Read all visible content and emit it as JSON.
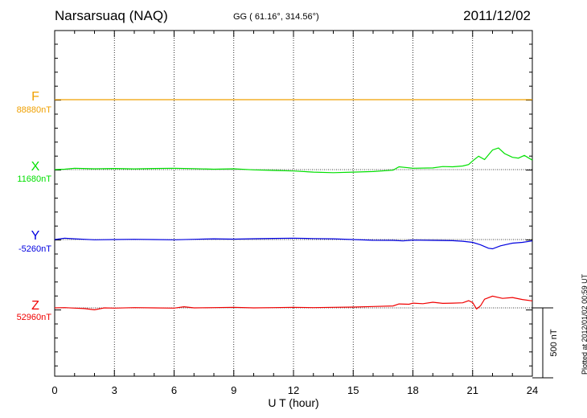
{
  "header": {
    "station": "Narsarsuaq (NAQ)",
    "coords": "GG ( 61.16°, 314.56°)",
    "date": "2011/12/02"
  },
  "footer": {
    "plotted": "Plotted at 2012/01/02 00:59 UT",
    "scale_label": "500 nT"
  },
  "chart_data": {
    "type": "line",
    "xlabel": "U T (hour)",
    "xlim": [
      0,
      24
    ],
    "xticks": [
      "0",
      "3",
      "6",
      "9",
      "12",
      "15",
      "18",
      "21",
      "24"
    ],
    "y_unit_scale_nT": 500,
    "series": [
      {
        "name": "F",
        "baseline_label": "88880nT",
        "color": "#f0a000",
        "baseline": 88880,
        "x": [
          0,
          1,
          2,
          3,
          4,
          5,
          6,
          7,
          8,
          9,
          10,
          11,
          12,
          13,
          14,
          15,
          16,
          17,
          18,
          19,
          20,
          21,
          22,
          23,
          24
        ],
        "y": [
          88880,
          88880,
          88880,
          88880,
          88880,
          88880,
          88880,
          88880,
          88880,
          88880,
          88880,
          88880,
          88880,
          88880,
          88880,
          88880,
          88880,
          88880,
          88880,
          88880,
          88880,
          88880,
          88880,
          88880,
          88880
        ]
      },
      {
        "name": "X",
        "baseline_label": "11680nT",
        "color": "#00e000",
        "baseline": 11680,
        "x": [
          0,
          0.5,
          1,
          2,
          3,
          4,
          5,
          6,
          7,
          8,
          9,
          10,
          11,
          12,
          13,
          14,
          15,
          16,
          17,
          17.3,
          18,
          19,
          19.5,
          20,
          20.5,
          20.8,
          21,
          21.3,
          21.6,
          22,
          22.3,
          22.6,
          23,
          23.3,
          23.6,
          24
        ],
        "y": [
          11680,
          11683,
          11690,
          11686,
          11688,
          11685,
          11688,
          11690,
          11687,
          11683,
          11686,
          11678,
          11674,
          11670,
          11662,
          11658,
          11662,
          11666,
          11676,
          11700,
          11690,
          11692,
          11702,
          11700,
          11706,
          11716,
          11742,
          11776,
          11752,
          11820,
          11835,
          11795,
          11768,
          11762,
          11782,
          11748
        ]
      },
      {
        "name": "Y",
        "baseline_label": "-5260nT",
        "color": "#0000e0",
        "baseline": -5260,
        "x": [
          0,
          0.5,
          1,
          2,
          3,
          4,
          5,
          6,
          7,
          8,
          9,
          10,
          11,
          12,
          13,
          14,
          15,
          16,
          17,
          17.5,
          18,
          19,
          20,
          20.5,
          21,
          21.4,
          21.8,
          22,
          22.4,
          23,
          23.5,
          24
        ],
        "y": [
          -5260,
          -5250,
          -5255,
          -5262,
          -5260,
          -5258,
          -5260,
          -5262,
          -5258,
          -5255,
          -5257,
          -5254,
          -5252,
          -5250,
          -5253,
          -5255,
          -5260,
          -5265,
          -5266,
          -5270,
          -5264,
          -5266,
          -5268,
          -5272,
          -5280,
          -5298,
          -5322,
          -5326,
          -5305,
          -5286,
          -5280,
          -5270
        ]
      },
      {
        "name": "Z",
        "baseline_label": "52960nT",
        "color": "#f00000",
        "baseline": 52960,
        "x": [
          0,
          0.5,
          1,
          1.5,
          2,
          2.5,
          3,
          4,
          5,
          6,
          6.5,
          7,
          8,
          9,
          10,
          11,
          12,
          13,
          14,
          15,
          16,
          17,
          17.3,
          17.8,
          18,
          18.5,
          19,
          19.5,
          20,
          20.5,
          20.8,
          21,
          21.2,
          21.4,
          21.6,
          22,
          22.5,
          23,
          23.5,
          24
        ],
        "y": [
          52960,
          52962,
          52958,
          52955,
          52946,
          52960,
          52958,
          52962,
          52960,
          52958,
          52968,
          52960,
          52962,
          52964,
          52960,
          52962,
          52964,
          52962,
          52964,
          52966,
          52970,
          52974,
          52988,
          52986,
          52994,
          52990,
          53000,
          52992,
          52994,
          52996,
          53012,
          52998,
          52952,
          52975,
          53022,
          53044,
          53028,
          53034,
          53020,
          53010
        ]
      }
    ]
  }
}
